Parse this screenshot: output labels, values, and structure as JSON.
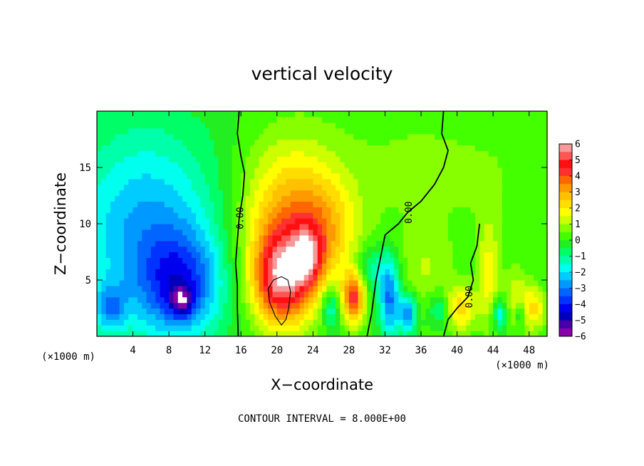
{
  "chart_data": {
    "type": "heatmap",
    "title": "vertical velocity",
    "xlabel": "X−coordinate",
    "ylabel": "Z−coordinate",
    "x_unit_left": "(×1000 m)",
    "x_unit_right": "(×1000 m)",
    "xlim": [
      0,
      50
    ],
    "ylim": [
      0,
      20
    ],
    "x_ticks": [
      4,
      8,
      12,
      16,
      20,
      24,
      28,
      32,
      36,
      40,
      44,
      48
    ],
    "y_ticks": [
      5,
      10,
      15
    ],
    "x_tick_labels": [
      "4",
      "8",
      "12",
      "16",
      "20",
      "24",
      "28",
      "32",
      "36",
      "40",
      "44",
      "48"
    ],
    "y_tick_labels": [
      "5",
      "10",
      "15"
    ],
    "colorbar": {
      "min": -6,
      "max": 6,
      "tick_labels": [
        "6",
        "5",
        "4",
        "3",
        "2",
        "1",
        "0",
        "−1",
        "−2",
        "−3",
        "−4",
        "−5",
        "−6"
      ],
      "levels": [
        {
          "from": 5.5,
          "to": 6,
          "color": "#f49a9a"
        },
        {
          "from": 5,
          "to": 5.5,
          "color": "#ff5555"
        },
        {
          "from": 4.5,
          "to": 5,
          "color": "#ff1010"
        },
        {
          "from": 4,
          "to": 4.5,
          "color": "#ff3030"
        },
        {
          "from": 3.5,
          "to": 4,
          "color": "#ff6600"
        },
        {
          "from": 3,
          "to": 3.5,
          "color": "#ff9900"
        },
        {
          "from": 2.5,
          "to": 3,
          "color": "#ffc000"
        },
        {
          "from": 2,
          "to": 2.5,
          "color": "#ffdd00"
        },
        {
          "from": 1.5,
          "to": 2,
          "color": "#ffff00"
        },
        {
          "from": 1,
          "to": 1.5,
          "color": "#ccff00"
        },
        {
          "from": 0.5,
          "to": 1,
          "color": "#88ff00"
        },
        {
          "from": 0,
          "to": 0.5,
          "color": "#44ff00"
        },
        {
          "from": -0.5,
          "to": 0,
          "color": "#22ee22"
        },
        {
          "from": -1,
          "to": -0.5,
          "color": "#00ff66"
        },
        {
          "from": -1.5,
          "to": -1,
          "color": "#00ffaa"
        },
        {
          "from": -2,
          "to": -1.5,
          "color": "#00ffee"
        },
        {
          "from": -2.5,
          "to": -2,
          "color": "#00ccff"
        },
        {
          "from": -3,
          "to": -2.5,
          "color": "#0099ff"
        },
        {
          "from": -3.5,
          "to": -3,
          "color": "#0066ff"
        },
        {
          "from": -4,
          "to": -3.5,
          "color": "#0033ff"
        },
        {
          "from": -4.5,
          "to": -4,
          "color": "#0000ee"
        },
        {
          "from": -5,
          "to": -4.5,
          "color": "#0000bb"
        },
        {
          "from": -5.5,
          "to": -5,
          "color": "#4400aa"
        },
        {
          "from": -6,
          "to": -5.5,
          "color": "#8800aa"
        }
      ]
    },
    "features": [
      {
        "x": 5.5,
        "z": 9.5,
        "sx": 6.0,
        "sz": 6.5,
        "amp": -2.6
      },
      {
        "x": 9.3,
        "z": 4.5,
        "sx": 3.2,
        "sz": 3.2,
        "amp": -2.8
      },
      {
        "x": 9.4,
        "z": 3.2,
        "sx": 0.9,
        "sz": 0.9,
        "amp": -2.5
      },
      {
        "x": 1.5,
        "z": 2.5,
        "sx": 1.2,
        "sz": 1.5,
        "amp": -2.0
      },
      {
        "x": 21.5,
        "z": 10.0,
        "sx": 4.0,
        "sz": 5.0,
        "amp": 3.2
      },
      {
        "x": 20.5,
        "z": 5.0,
        "sx": 2.2,
        "sz": 2.8,
        "amp": 4.5
      },
      {
        "x": 23.5,
        "z": 7.0,
        "sx": 1.2,
        "sz": 1.8,
        "amp": 2.5
      },
      {
        "x": 25.5,
        "z": 9.5,
        "sx": 2.5,
        "sz": 3.0,
        "amp": 1.3
      },
      {
        "x": 28.5,
        "z": 3.5,
        "sx": 0.9,
        "sz": 1.6,
        "amp": 4.0
      },
      {
        "x": 26.0,
        "z": 2.5,
        "sx": 0.7,
        "sz": 1.4,
        "amp": -2.0
      },
      {
        "x": 32.5,
        "z": 3.5,
        "sx": 0.8,
        "sz": 2.5,
        "amp": -3.2
      },
      {
        "x": 34.5,
        "z": 2.0,
        "sx": 0.7,
        "sz": 1.2,
        "amp": -3.0
      },
      {
        "x": 30.5,
        "z": 6.0,
        "sx": 1.2,
        "sz": 1.5,
        "amp": -1.5
      },
      {
        "x": 36.5,
        "z": 6.0,
        "sx": 2.0,
        "sz": 2.5,
        "amp": 0.9
      },
      {
        "x": 40.5,
        "z": 2.5,
        "sx": 1.2,
        "sz": 1.5,
        "amp": 2.2
      },
      {
        "x": 43.5,
        "z": 5.5,
        "sx": 0.8,
        "sz": 3.5,
        "amp": 1.6
      },
      {
        "x": 46.5,
        "z": 3.0,
        "sx": 1.0,
        "sz": 2.0,
        "amp": 1.4
      },
      {
        "x": 48.5,
        "z": 2.5,
        "sx": 1.0,
        "sz": 1.4,
        "amp": 2.0
      },
      {
        "x": 38.0,
        "z": 2.5,
        "sx": 0.8,
        "sz": 1.0,
        "amp": -1.4
      },
      {
        "x": 44.8,
        "z": 2.0,
        "sx": 0.6,
        "sz": 1.0,
        "amp": -2.2
      },
      {
        "x": 47.0,
        "z": 2.0,
        "sx": 0.5,
        "sz": 1.0,
        "amp": -1.8
      },
      {
        "x": 34.0,
        "z": 15.0,
        "sx": 6.0,
        "sz": 5.0,
        "amp": 0.5
      },
      {
        "x": 45.0,
        "z": 14.0,
        "sx": 6.0,
        "sz": 5.0,
        "amp": 0.4
      }
    ],
    "contours": [
      {
        "level": 0,
        "label": "0.00",
        "points": [
          [
            15.8,
            20
          ],
          [
            15.6,
            18
          ],
          [
            16.0,
            16
          ],
          [
            16.4,
            14.5
          ],
          [
            16.2,
            12.5
          ],
          [
            15.8,
            10.5
          ],
          [
            15.6,
            8.5
          ],
          [
            15.4,
            6.5
          ],
          [
            15.6,
            4.5
          ],
          [
            15.6,
            2.5
          ],
          [
            15.7,
            0
          ]
        ]
      },
      {
        "level": 0,
        "label": "0.00",
        "points": [
          [
            38.5,
            20
          ],
          [
            38.3,
            18
          ],
          [
            39.0,
            16.5
          ],
          [
            38.5,
            15
          ],
          [
            37.5,
            13.5
          ],
          [
            36.0,
            12.0
          ],
          [
            34.5,
            11.0
          ],
          [
            33.5,
            10.0
          ],
          [
            32.0,
            9.0
          ],
          [
            31.5,
            7.0
          ],
          [
            31.0,
            5.0
          ],
          [
            30.5,
            2.0
          ],
          [
            30.0,
            0
          ]
        ]
      },
      {
        "level": 0,
        "label": "0.00",
        "points": [
          [
            42.5,
            10.0
          ],
          [
            42.2,
            8.0
          ],
          [
            41.5,
            6.5
          ],
          [
            41.8,
            5.0
          ],
          [
            41.2,
            3.5
          ],
          [
            40.0,
            2.5
          ],
          [
            39.0,
            1.5
          ],
          [
            38.5,
            0
          ]
        ]
      },
      {
        "level": 8,
        "label": "",
        "points": [
          [
            20.5,
            5.3
          ],
          [
            21.2,
            5.0
          ],
          [
            21.5,
            4.0
          ],
          [
            21.3,
            2.5
          ],
          [
            21.0,
            1.5
          ],
          [
            20.5,
            1.0
          ],
          [
            19.8,
            1.8
          ],
          [
            19.2,
            3.0
          ],
          [
            19.0,
            4.2
          ],
          [
            19.6,
            5.0
          ],
          [
            20.5,
            5.3
          ]
        ]
      }
    ]
  },
  "footer": {
    "contour_interval": "CONTOUR INTERVAL = 8.000E+00"
  }
}
